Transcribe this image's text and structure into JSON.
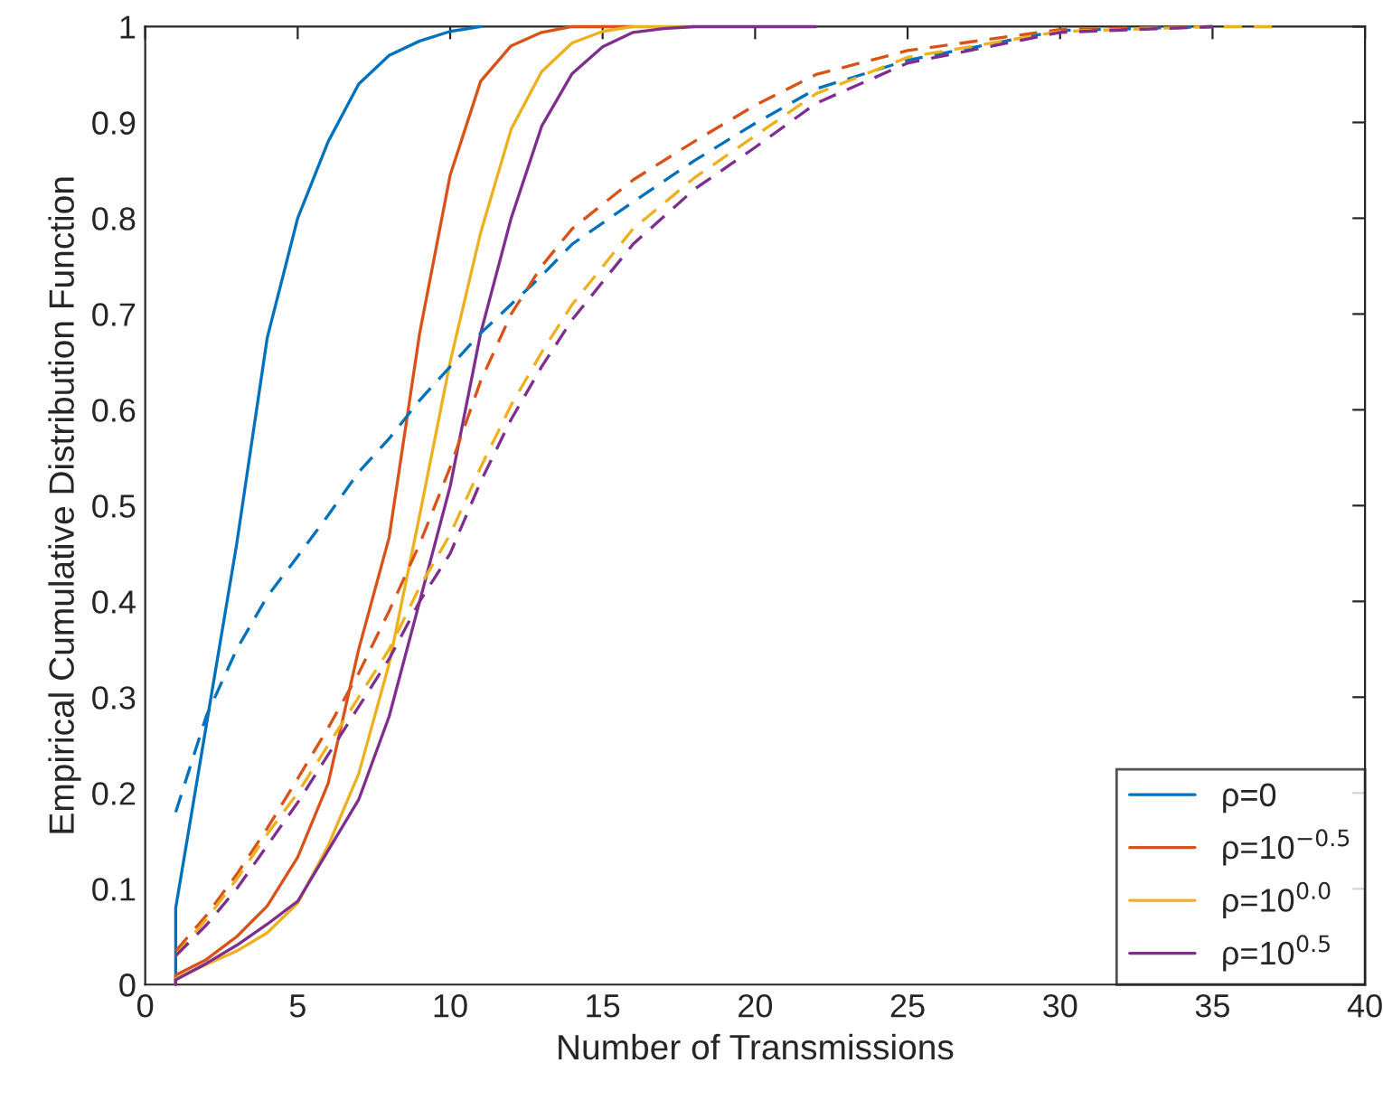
{
  "chart_data": {
    "type": "line",
    "xlabel": "Number of Transmissions",
    "ylabel": "Empirical Cumulative Distribution Function",
    "xlim": [
      0,
      40
    ],
    "ylim": [
      0,
      1
    ],
    "xticks": [
      0,
      5,
      10,
      15,
      20,
      25,
      30,
      35,
      40
    ],
    "yticks": [
      0,
      0.1,
      0.2,
      0.3,
      0.4,
      0.5,
      0.6,
      0.7,
      0.8,
      0.9,
      1
    ],
    "grid": false,
    "legend": "bottom right",
    "marker": "none",
    "series": [
      {
        "name": "ρ=0",
        "color": "#0072bd",
        "line_style": "solid",
        "x": [
          1,
          1,
          2,
          3,
          4,
          5,
          6,
          7,
          8,
          9,
          10,
          11
        ],
        "values": [
          0,
          0.08,
          0.27,
          0.46,
          0.675,
          0.8,
          0.88,
          0.94,
          0.97,
          0.985,
          0.995,
          1
        ]
      },
      {
        "name": "ρ=10$^{−0.5}$",
        "color": "#d95319",
        "line_style": "solid",
        "x": [
          1,
          1,
          2,
          3,
          4,
          5,
          6,
          7,
          8,
          9,
          10,
          11,
          12,
          13,
          14,
          16
        ],
        "values": [
          0,
          0.01,
          0.026,
          0.05,
          0.082,
          0.133,
          0.21,
          0.35,
          0.467,
          0.68,
          0.845,
          0.943,
          0.98,
          0.994,
          1,
          1
        ]
      },
      {
        "name": "ρ=10$^{0.0}$",
        "color": "#edb120",
        "line_style": "solid",
        "x": [
          1,
          1,
          2,
          3,
          4,
          5,
          6,
          7,
          8,
          9,
          10,
          11,
          12,
          13,
          14,
          15,
          16,
          18
        ],
        "values": [
          0,
          0.006,
          0.021,
          0.035,
          0.054,
          0.085,
          0.145,
          0.22,
          0.335,
          0.49,
          0.65,
          0.785,
          0.893,
          0.953,
          0.983,
          0.995,
          1,
          1
        ]
      },
      {
        "name": "ρ=10$^{0.5}$",
        "color": "#7e2f8e",
        "line_style": "solid",
        "x": [
          1,
          1,
          2,
          3,
          4,
          5,
          6,
          7,
          8,
          9,
          10,
          11,
          12,
          13,
          14,
          15,
          16,
          17,
          18,
          22
        ],
        "values": [
          0,
          0.005,
          0.022,
          0.041,
          0.063,
          0.087,
          0.14,
          0.193,
          0.28,
          0.4,
          0.52,
          0.68,
          0.8,
          0.896,
          0.951,
          0.979,
          0.994,
          0.998,
          1,
          1
        ]
      },
      {
        "color": "#0072bd",
        "line_style": "dashed",
        "x": [
          1,
          2,
          3,
          4,
          5,
          6,
          7,
          8,
          9,
          10,
          11,
          12,
          13,
          14,
          16,
          18,
          20,
          22,
          25,
          30,
          35
        ],
        "values": [
          0.18,
          0.28,
          0.35,
          0.405,
          0.447,
          0.49,
          0.535,
          0.57,
          0.61,
          0.645,
          0.68,
          0.71,
          0.74,
          0.773,
          0.817,
          0.86,
          0.899,
          0.935,
          0.965,
          0.996,
          1
        ]
      },
      {
        "color": "#d95319",
        "line_style": "dashed",
        "x": [
          1,
          2,
          3,
          4,
          5,
          6,
          7,
          8,
          9,
          10,
          11,
          12,
          13,
          14,
          16,
          18,
          20,
          22,
          25,
          30,
          35
        ],
        "values": [
          0.035,
          0.072,
          0.115,
          0.163,
          0.215,
          0.268,
          0.325,
          0.39,
          0.46,
          0.54,
          0.63,
          0.7,
          0.75,
          0.789,
          0.84,
          0.88,
          0.918,
          0.95,
          0.975,
          0.997,
          1
        ]
      },
      {
        "color": "#edb120",
        "line_style": "dashed",
        "x": [
          1,
          2,
          3,
          4,
          5,
          6,
          7,
          8,
          9,
          10,
          11,
          12,
          13,
          14,
          16,
          18,
          20,
          22,
          25,
          30,
          35,
          37
        ],
        "values": [
          0.03,
          0.068,
          0.11,
          0.157,
          0.2,
          0.25,
          0.3,
          0.35,
          0.415,
          0.47,
          0.54,
          0.605,
          0.66,
          0.71,
          0.789,
          0.842,
          0.886,
          0.93,
          0.968,
          0.995,
          1,
          1
        ]
      },
      {
        "color": "#7e2f8e",
        "line_style": "dashed",
        "x": [
          1,
          2,
          3,
          4,
          5,
          6,
          7,
          8,
          9,
          10,
          11,
          12,
          13,
          14,
          16,
          18,
          20,
          22,
          25,
          30,
          35
        ],
        "values": [
          0.03,
          0.062,
          0.1,
          0.145,
          0.19,
          0.24,
          0.29,
          0.34,
          0.4,
          0.45,
          0.525,
          0.59,
          0.645,
          0.694,
          0.773,
          0.83,
          0.874,
          0.92,
          0.962,
          0.994,
          1
        ]
      }
    ]
  }
}
